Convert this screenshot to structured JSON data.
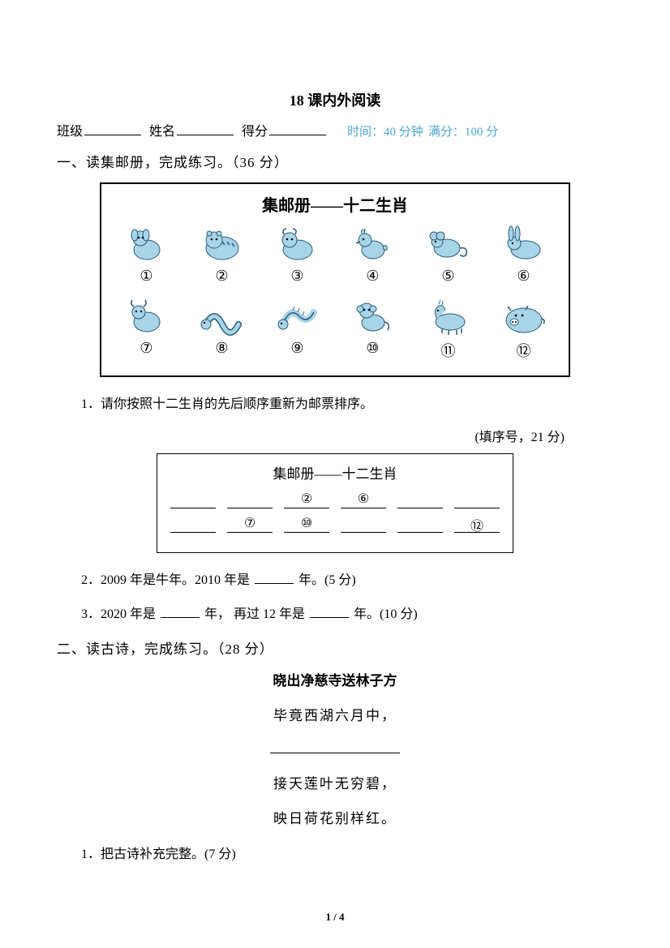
{
  "title": "18 课内外阅读",
  "header": {
    "class_label": "班级",
    "name_label": "姓名",
    "score_label": "得分",
    "meta_time": "时间：40 分钟",
    "meta_full": "满分：100 分"
  },
  "section1": {
    "heading": "一、读集邮册，完成练习。（36 分）",
    "stamp_title": "集邮册——十二生肖",
    "zodiac": [
      {
        "num": "①",
        "name": "dog",
        "color": "#a8d4e8"
      },
      {
        "num": "②",
        "name": "tiger",
        "color": "#a8d4e8"
      },
      {
        "num": "③",
        "name": "ox",
        "color": "#a8d4e8"
      },
      {
        "num": "④",
        "name": "rooster",
        "color": "#a8d4e8"
      },
      {
        "num": "⑤",
        "name": "rat",
        "color": "#a8d4e8"
      },
      {
        "num": "⑥",
        "name": "rabbit",
        "color": "#a8d4e8"
      },
      {
        "num": "⑦",
        "name": "goat",
        "color": "#a8d4e8"
      },
      {
        "num": "⑧",
        "name": "snake",
        "color": "#a8d4e8"
      },
      {
        "num": "⑨",
        "name": "dragon",
        "color": "#a8d4e8"
      },
      {
        "num": "⑩",
        "name": "monkey",
        "color": "#a8d4e8"
      },
      {
        "num": "⑪",
        "name": "horse",
        "color": "#a8d4e8"
      },
      {
        "num": "⑫",
        "name": "pig",
        "color": "#a8d4e8"
      }
    ],
    "q1": "1．请你按照十二生肖的先后顺序重新为邮票排序。",
    "q1_note": "(填序号，21 分)",
    "answer_title": "集邮册——十二生肖",
    "answer_row1": [
      "",
      "",
      "②",
      "⑥",
      "",
      ""
    ],
    "answer_row2": [
      "",
      "⑦",
      "⑩",
      "",
      "",
      "⑫"
    ],
    "q2_pre": "2．2009 年是牛年。2010 年是",
    "q2_post": "年。(5 分)",
    "q3_a": "3．2020 年是",
    "q3_b": "年，  再过 12 年是",
    "q3_c": "年。(10 分)"
  },
  "section2": {
    "heading": "二、读古诗，完成练习。（28 分）",
    "poem_title": "晓出净慈寺送林子方",
    "poem_lines": [
      "毕竟西湖六月中，",
      "",
      "接天莲叶无穷碧，",
      "映日荷花别样红。"
    ],
    "q1": "1．把古诗补充完整。(7 分)"
  },
  "footer": "1 / 4",
  "colors": {
    "text": "#000000",
    "meta": "#4aa6d6",
    "animal_fill": "#a8d4e8",
    "animal_stroke": "#2a5a7a",
    "bg": "#ffffff"
  }
}
